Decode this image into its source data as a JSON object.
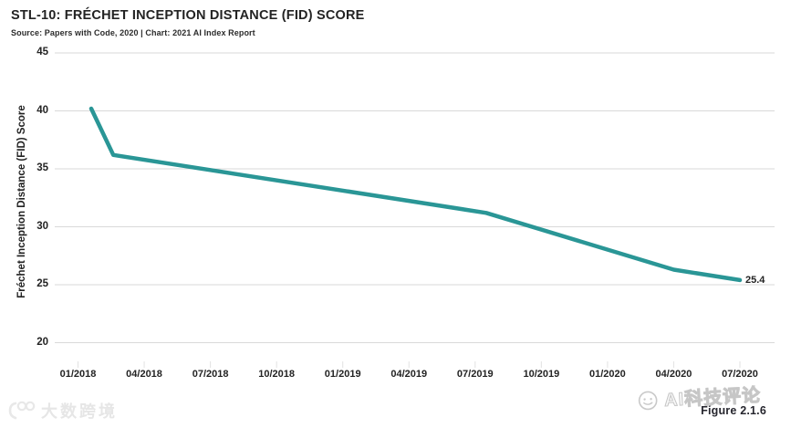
{
  "header": {
    "title": "STL-10: FRÉCHET INCEPTION DISTANCE (FID) SCORE",
    "subtitle": "Source: Papers with Code, 2020 | Chart: 2021 AI Index Report"
  },
  "chart_data": {
    "type": "line",
    "title": "STL-10: FRÉCHET INCEPTION DISTANCE (FID) SCORE",
    "xlabel": "",
    "ylabel": "Fréchet Inception Distance (FID) Score",
    "ylim": [
      20,
      45
    ],
    "y_ticks": [
      45,
      40,
      35,
      30,
      25,
      20
    ],
    "x_tick_labels": [
      "01/2018",
      "04/2018",
      "07/2018",
      "10/2018",
      "01/2019",
      "04/2019",
      "07/2019",
      "10/2019",
      "01/2020",
      "04/2020",
      "07/2020"
    ],
    "grid": "horizontal",
    "legend": "none",
    "series": [
      {
        "name": "STL-10 FID score",
        "points": [
          {
            "date": "01/2018",
            "month": 0.6,
            "value": 40.2
          },
          {
            "date": "03/2018",
            "month": 1.6,
            "value": 36.2
          },
          {
            "date": "08/2019",
            "month": 18.5,
            "value": 31.2
          },
          {
            "date": "04/2020",
            "month": 27.0,
            "value": 26.3
          },
          {
            "date": "07/2020",
            "month": 30.0,
            "value": 25.4
          }
        ],
        "end_label": "25.4"
      }
    ]
  },
  "footer": {
    "figure_label": "Figure 2.1.6"
  },
  "watermarks": {
    "bottom_left_text": "大数跨境",
    "bottom_right_text": "AI科技评论"
  },
  "colors": {
    "line": "#2A9696",
    "grid": "#D9D9D9",
    "tick": "#E2E2E2",
    "text": "#232323",
    "watermark": "#E6E6E6"
  }
}
